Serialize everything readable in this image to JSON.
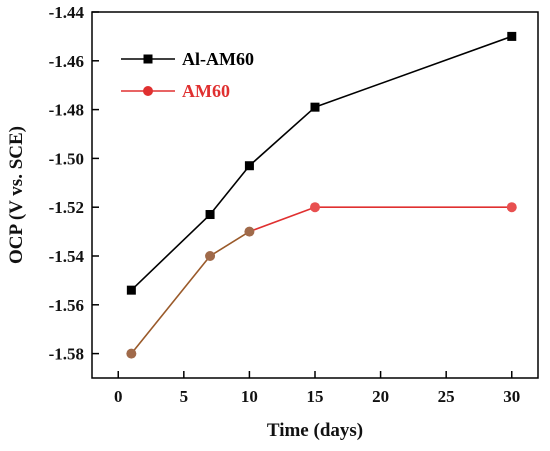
{
  "chart_data": {
    "type": "line",
    "title": "",
    "xlabel": "Time (days)",
    "ylabel": "OCP (V vs. SCE)",
    "xlim": [
      -2,
      32
    ],
    "ylim": [
      -1.59,
      -1.44
    ],
    "x_ticks": [
      0,
      5,
      10,
      15,
      20,
      25,
      30
    ],
    "y_ticks": [
      -1.58,
      -1.56,
      -1.54,
      -1.52,
      -1.5,
      -1.48,
      -1.46,
      -1.44
    ],
    "x_tick_labels": [
      "0",
      "5",
      "10",
      "15",
      "20",
      "25",
      "30"
    ],
    "y_tick_labels": [
      "-1.58",
      "-1.56",
      "-1.54",
      "-1.52",
      "-1.50",
      "-1.48",
      "-1.46",
      "-1.44"
    ],
    "grid": false,
    "legend_position": "top-left",
    "series": [
      {
        "name": "Al-AM60",
        "color": "#000000",
        "marker": "square",
        "x": [
          1,
          7,
          10,
          15,
          30
        ],
        "y": [
          -1.554,
          -1.523,
          -1.503,
          -1.479,
          -1.45
        ]
      },
      {
        "name": "AM60",
        "color": "#e03030",
        "marker": "circle",
        "segment_colors": [
          "#9a5a2a",
          "#9a5a2a",
          "#e03030",
          "#e03030"
        ],
        "marker_colors": [
          "#a06a4a",
          "#a06a4a",
          "#a06a4a",
          "#e85050",
          "#e85050"
        ],
        "x": [
          1,
          7,
          10,
          15,
          30
        ],
        "y": [
          -1.58,
          -1.54,
          -1.53,
          -1.52,
          -1.52
        ]
      }
    ]
  }
}
